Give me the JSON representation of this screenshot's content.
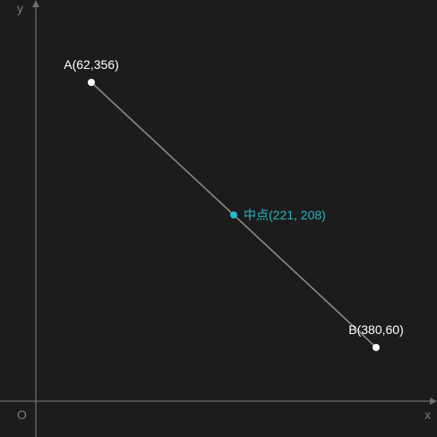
{
  "labels": {
    "x_axis": "x",
    "y_axis": "y",
    "origin": "O"
  },
  "points": [
    {
      "id": "A",
      "x": 62,
      "y": 356,
      "label": "A(62,356)"
    },
    {
      "id": "B",
      "x": 380,
      "y": 60,
      "label": "B(380,60)"
    }
  ],
  "midpoint": {
    "x": 221,
    "y": 208,
    "label": "中点(221, 208)"
  },
  "colors": {
    "background": "#1c1c1c",
    "axis": "#6e6e6e",
    "segment": "#8a8a8a",
    "point": "#ffffff",
    "midpoint": "#29b6c6"
  }
}
